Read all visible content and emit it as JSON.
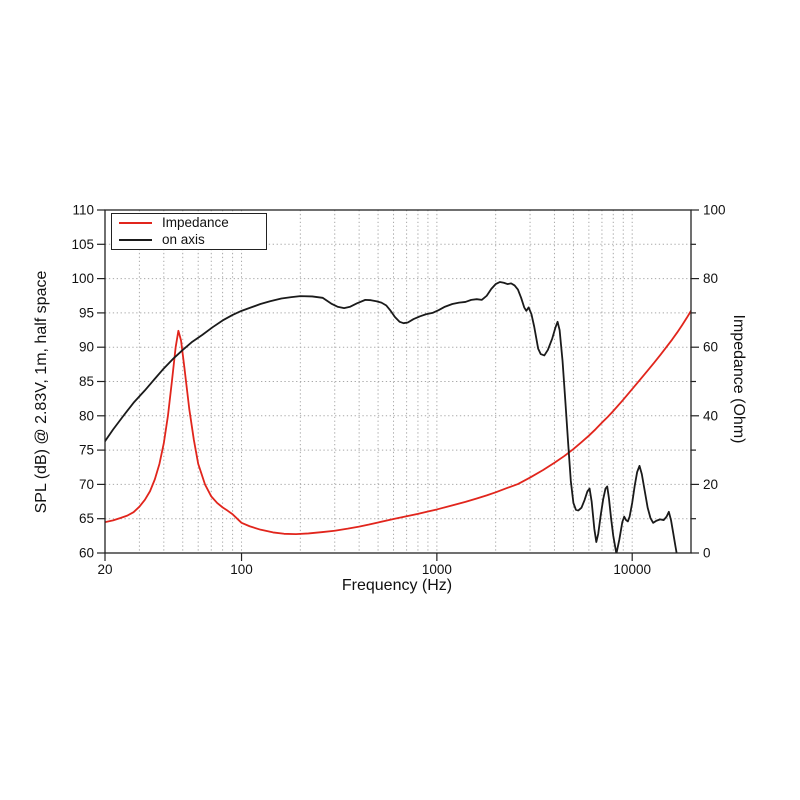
{
  "chart_data": {
    "type": "line",
    "title": "",
    "xlabel": "Frequency (Hz)",
    "ylabel_left": "SPL (dB) @ 2.83V, 1m, half space",
    "ylabel_right": "Impedance (Ohm)",
    "x_scale": "log",
    "xlim": [
      20,
      20000
    ],
    "ylim_left": [
      60,
      110
    ],
    "ylim_right": [
      0,
      100
    ],
    "x_ticks": [
      20,
      100,
      1000,
      10000
    ],
    "y_ticks_left": [
      60,
      65,
      70,
      75,
      80,
      85,
      90,
      95,
      100,
      105,
      110
    ],
    "y_ticks_right_major": [
      0,
      20,
      40,
      60,
      80,
      100
    ],
    "y_ticks_right_minor": [
      10,
      30,
      50,
      70,
      90
    ],
    "grid": "dotted",
    "legend": {
      "position": "top-left",
      "entries": [
        {
          "label": "Impedance",
          "color": "#e1251c"
        },
        {
          "label": "on axis",
          "color": "#1a1a1a"
        }
      ]
    },
    "series": [
      {
        "name": "Impedance",
        "axis": "right",
        "units": "Ohm",
        "color": "#e1251c",
        "points": [
          [
            20,
            9.0
          ],
          [
            22,
            9.5
          ],
          [
            24,
            10.2
          ],
          [
            26,
            10.9
          ],
          [
            28,
            11.9
          ],
          [
            30,
            13.5
          ],
          [
            32,
            15.5
          ],
          [
            34,
            18.0
          ],
          [
            36,
            21.5
          ],
          [
            38,
            26.0
          ],
          [
            40,
            32.0
          ],
          [
            42,
            40.0
          ],
          [
            44,
            50.0
          ],
          [
            46,
            60.0
          ],
          [
            47.5,
            64.8
          ],
          [
            49,
            62.0
          ],
          [
            51,
            54.0
          ],
          [
            54,
            42.0
          ],
          [
            57,
            33.0
          ],
          [
            60,
            26.0
          ],
          [
            65,
            20.0
          ],
          [
            70,
            16.5
          ],
          [
            75,
            14.6
          ],
          [
            80,
            13.3
          ],
          [
            85,
            12.3
          ],
          [
            90,
            11.3
          ],
          [
            95,
            10.0
          ],
          [
            100,
            8.8
          ],
          [
            110,
            7.8
          ],
          [
            125,
            6.8
          ],
          [
            145,
            6.0
          ],
          [
            165,
            5.6
          ],
          [
            190,
            5.5
          ],
          [
            220,
            5.7
          ],
          [
            260,
            6.1
          ],
          [
            300,
            6.5
          ],
          [
            350,
            7.1
          ],
          [
            400,
            7.7
          ],
          [
            450,
            8.3
          ],
          [
            500,
            8.9
          ],
          [
            600,
            9.9
          ],
          [
            700,
            10.7
          ],
          [
            800,
            11.4
          ],
          [
            900,
            12.1
          ],
          [
            1000,
            12.7
          ],
          [
            1200,
            13.9
          ],
          [
            1400,
            14.9
          ],
          [
            1600,
            15.9
          ],
          [
            1800,
            16.8
          ],
          [
            2000,
            17.7
          ],
          [
            2300,
            19.0
          ],
          [
            2600,
            20.1
          ],
          [
            3000,
            22.0
          ],
          [
            3500,
            24.2
          ],
          [
            4000,
            26.3
          ],
          [
            4500,
            28.3
          ],
          [
            5000,
            30.3
          ],
          [
            5500,
            32.3
          ],
          [
            6000,
            34.2
          ],
          [
            6500,
            36.1
          ],
          [
            7000,
            38.0
          ],
          [
            7500,
            39.7
          ],
          [
            8000,
            41.4
          ],
          [
            9000,
            44.7
          ],
          [
            10000,
            47.8
          ],
          [
            11000,
            50.6
          ],
          [
            12000,
            53.2
          ],
          [
            13000,
            55.6
          ],
          [
            14000,
            57.9
          ],
          [
            15000,
            60.1
          ],
          [
            16000,
            62.2
          ],
          [
            17000,
            64.3
          ],
          [
            18000,
            66.4
          ],
          [
            19000,
            68.5
          ],
          [
            20000,
            70.6
          ]
        ]
      },
      {
        "name": "on axis",
        "axis": "left",
        "units": "dB",
        "color": "#1a1a1a",
        "points": [
          [
            20,
            76.3
          ],
          [
            22,
            78.0
          ],
          [
            25,
            80.1
          ],
          [
            28,
            81.9
          ],
          [
            32,
            83.7
          ],
          [
            36,
            85.4
          ],
          [
            40,
            86.9
          ],
          [
            45,
            88.4
          ],
          [
            50,
            89.6
          ],
          [
            56,
            90.8
          ],
          [
            63,
            91.8
          ],
          [
            71,
            92.9
          ],
          [
            80,
            93.9
          ],
          [
            90,
            94.7
          ],
          [
            100,
            95.3
          ],
          [
            112,
            95.8
          ],
          [
            125,
            96.3
          ],
          [
            140,
            96.7
          ],
          [
            160,
            97.1
          ],
          [
            180,
            97.3
          ],
          [
            200,
            97.45
          ],
          [
            230,
            97.4
          ],
          [
            260,
            97.2
          ],
          [
            290,
            96.3
          ],
          [
            310,
            95.9
          ],
          [
            335,
            95.7
          ],
          [
            360,
            95.9
          ],
          [
            390,
            96.4
          ],
          [
            430,
            96.9
          ],
          [
            460,
            96.85
          ],
          [
            490,
            96.7
          ],
          [
            520,
            96.5
          ],
          [
            550,
            96.1
          ],
          [
            580,
            95.3
          ],
          [
            610,
            94.4
          ],
          [
            645,
            93.7
          ],
          [
            675,
            93.5
          ],
          [
            710,
            93.6
          ],
          [
            760,
            94.1
          ],
          [
            820,
            94.5
          ],
          [
            880,
            94.8
          ],
          [
            950,
            95.0
          ],
          [
            1020,
            95.4
          ],
          [
            1100,
            95.9
          ],
          [
            1200,
            96.3
          ],
          [
            1300,
            96.5
          ],
          [
            1400,
            96.6
          ],
          [
            1500,
            96.9
          ],
          [
            1600,
            97.0
          ],
          [
            1700,
            96.9
          ],
          [
            1800,
            97.5
          ],
          [
            1900,
            98.5
          ],
          [
            2000,
            99.2
          ],
          [
            2100,
            99.5
          ],
          [
            2200,
            99.4
          ],
          [
            2300,
            99.2
          ],
          [
            2400,
            99.3
          ],
          [
            2500,
            99.0
          ],
          [
            2600,
            98.4
          ],
          [
            2700,
            97.2
          ],
          [
            2800,
            95.8
          ],
          [
            2870,
            95.3
          ],
          [
            2950,
            95.8
          ],
          [
            3050,
            94.8
          ],
          [
            3150,
            93.0
          ],
          [
            3300,
            89.8
          ],
          [
            3400,
            89.0
          ],
          [
            3550,
            88.8
          ],
          [
            3700,
            89.6
          ],
          [
            3900,
            91.3
          ],
          [
            4050,
            92.9
          ],
          [
            4150,
            93.7
          ],
          [
            4250,
            92.5
          ],
          [
            4400,
            88.0
          ],
          [
            4550,
            82.0
          ],
          [
            4700,
            76.0
          ],
          [
            4850,
            70.5
          ],
          [
            5000,
            67.3
          ],
          [
            5150,
            66.3
          ],
          [
            5300,
            66.2
          ],
          [
            5500,
            66.6
          ],
          [
            5700,
            67.7
          ],
          [
            5900,
            69.0
          ],
          [
            6050,
            69.4
          ],
          [
            6200,
            67.5
          ],
          [
            6400,
            63.5
          ],
          [
            6550,
            61.6
          ],
          [
            6700,
            62.8
          ],
          [
            6900,
            65.5
          ],
          [
            7100,
            67.8
          ],
          [
            7300,
            69.4
          ],
          [
            7450,
            69.7
          ],
          [
            7600,
            68.0
          ],
          [
            7800,
            65.0
          ],
          [
            8000,
            62.5
          ],
          [
            8300,
            59.9
          ],
          [
            8600,
            62.0
          ],
          [
            8900,
            64.5
          ],
          [
            9100,
            65.3
          ],
          [
            9300,
            64.8
          ],
          [
            9500,
            64.6
          ],
          [
            9700,
            65.3
          ],
          [
            10000,
            67.3
          ],
          [
            10300,
            69.8
          ],
          [
            10600,
            71.8
          ],
          [
            10900,
            72.7
          ],
          [
            11200,
            71.5
          ],
          [
            11600,
            69.0
          ],
          [
            12000,
            66.6
          ],
          [
            12400,
            65.1
          ],
          [
            12800,
            64.4
          ],
          [
            13300,
            64.7
          ],
          [
            13900,
            64.9
          ],
          [
            14500,
            64.8
          ],
          [
            15000,
            65.3
          ],
          [
            15400,
            66.0
          ],
          [
            15800,
            64.8
          ],
          [
            16200,
            63.0
          ],
          [
            16600,
            61.2
          ],
          [
            17000,
            59.5
          ]
        ]
      }
    ],
    "style": {
      "grid_color": "#a8a8a8",
      "frame_color": "#222222",
      "tick_label_color": "#111111",
      "background": "#ffffff"
    }
  }
}
